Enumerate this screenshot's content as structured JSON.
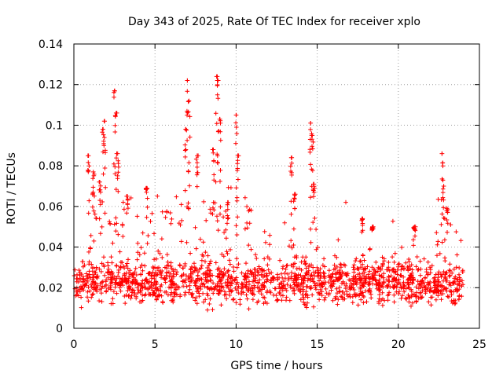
{
  "chart_data": {
    "type": "scatter",
    "title": "Day 343 of 2025, Rate Of TEC Index for receiver xplo",
    "xlabel": "GPS time / hours",
    "ylabel": "ROTI / TECUs",
    "xlim": [
      0,
      25
    ],
    "ylim": [
      0,
      0.14
    ],
    "xticks": [
      0,
      5,
      10,
      15,
      20,
      25
    ],
    "xtick_labels": [
      "0",
      "5",
      "10",
      "15",
      "20",
      "25"
    ],
    "yticks": [
      0,
      0.02,
      0.04,
      0.06,
      0.08,
      0.1,
      0.12,
      0.14
    ],
    "ytick_labels": [
      "0",
      "0.02",
      "0.04",
      "0.06",
      "0.08",
      "0.1",
      "0.12",
      "0.14"
    ],
    "grid": true,
    "marker": "+",
    "color": "#ff0000",
    "series": [
      {
        "name": "ROTI",
        "x_range": [
          0,
          24
        ],
        "baseline_typical": [
          0.008,
          0.035
        ],
        "spikes": [
          {
            "x": 0.9,
            "y": 0.085
          },
          {
            "x": 1.2,
            "y": 0.077
          },
          {
            "x": 1.6,
            "y": 0.072
          },
          {
            "x": 1.8,
            "y": 0.098
          },
          {
            "x": 1.9,
            "y": 0.102
          },
          {
            "x": 2.5,
            "y": 0.117
          },
          {
            "x": 2.6,
            "y": 0.106
          },
          {
            "x": 2.7,
            "y": 0.086
          },
          {
            "x": 3.3,
            "y": 0.065
          },
          {
            "x": 4.5,
            "y": 0.069
          },
          {
            "x": 6.9,
            "y": 0.098
          },
          {
            "x": 7.0,
            "y": 0.122
          },
          {
            "x": 7.1,
            "y": 0.112
          },
          {
            "x": 7.6,
            "y": 0.085
          },
          {
            "x": 8.6,
            "y": 0.088
          },
          {
            "x": 8.8,
            "y": 0.124
          },
          {
            "x": 8.9,
            "y": 0.122
          },
          {
            "x": 9.0,
            "y": 0.103
          },
          {
            "x": 9.5,
            "y": 0.062
          },
          {
            "x": 10.0,
            "y": 0.105
          },
          {
            "x": 10.1,
            "y": 0.085
          },
          {
            "x": 13.4,
            "y": 0.084
          },
          {
            "x": 13.6,
            "y": 0.066
          },
          {
            "x": 14.6,
            "y": 0.101
          },
          {
            "x": 14.7,
            "y": 0.095
          },
          {
            "x": 14.8,
            "y": 0.071
          },
          {
            "x": 17.8,
            "y": 0.054
          },
          {
            "x": 18.4,
            "y": 0.05
          },
          {
            "x": 21.0,
            "y": 0.05
          },
          {
            "x": 22.7,
            "y": 0.086
          },
          {
            "x": 22.8,
            "y": 0.07
          },
          {
            "x": 23.0,
            "y": 0.059
          }
        ]
      }
    ]
  }
}
